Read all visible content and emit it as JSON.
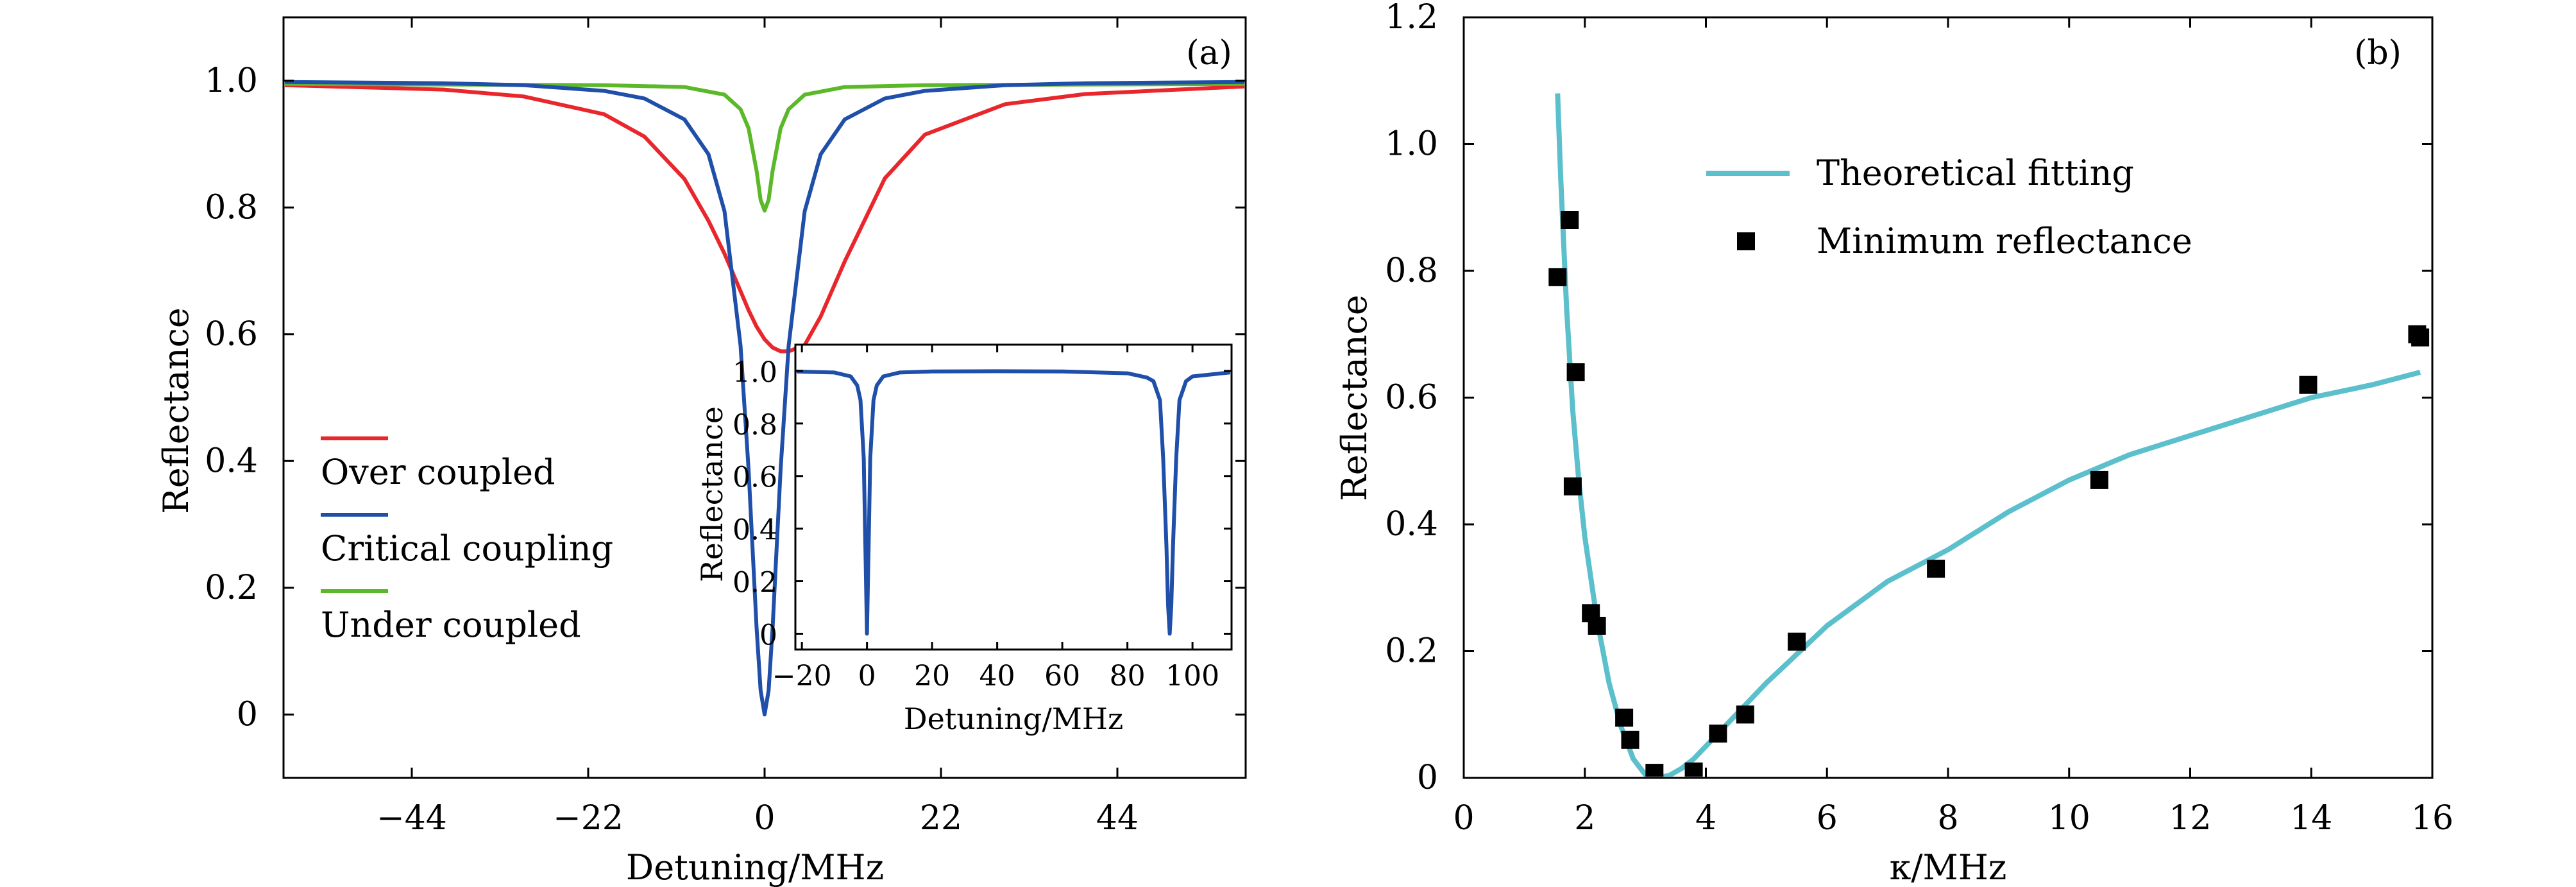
{
  "chart_data": [
    {
      "panel_label": "(a)",
      "type": "line",
      "xlabel": "Detuning/MHz",
      "ylabel": "Reflectance",
      "xlim": [
        -60,
        60
      ],
      "ylim": [
        -0.1,
        1.1
      ],
      "xticks": [
        -44,
        -22,
        0,
        22,
        44
      ],
      "xtick_labels": [
        "−44",
        "−22",
        "0",
        "22",
        "44"
      ],
      "yticks": [
        0,
        0.2,
        0.4,
        0.6,
        0.8,
        1.0
      ],
      "ytick_labels": [
        "0",
        "0.2",
        "0.4",
        "0.6",
        "0.8",
        "1.0"
      ],
      "grid": false,
      "legend_position": "left",
      "series": [
        {
          "name": "Over coupled",
          "color": "#e8262b",
          "x": [
            -60,
            -40,
            -30,
            -20,
            -15,
            -10,
            -7,
            -5,
            -3,
            -2,
            -1,
            0,
            1,
            2,
            3,
            5,
            7,
            10,
            15,
            20,
            30,
            40,
            60
          ],
          "y": [
            0.993,
            0.986,
            0.975,
            0.947,
            0.912,
            0.845,
            0.779,
            0.727,
            0.668,
            0.638,
            0.612,
            0.592,
            0.579,
            0.573,
            0.573,
            0.583,
            0.628,
            0.715,
            0.846,
            0.915,
            0.963,
            0.979,
            0.991
          ]
        },
        {
          "name": "Critical coupling",
          "color": "#1f4fa8",
          "x": [
            -60,
            -40,
            -30,
            -20,
            -15,
            -10,
            -7,
            -5,
            -3,
            -2,
            -1,
            -0.5,
            0,
            0.5,
            1,
            2,
            3,
            5,
            7,
            10,
            15,
            20,
            30,
            40,
            60
          ],
          "y": [
            0.998,
            0.996,
            0.993,
            0.984,
            0.972,
            0.939,
            0.884,
            0.794,
            0.582,
            0.387,
            0.137,
            0.038,
            0.0,
            0.038,
            0.137,
            0.387,
            0.582,
            0.794,
            0.884,
            0.939,
            0.972,
            0.984,
            0.993,
            0.996,
            0.998
          ]
        },
        {
          "name": "Under coupled",
          "color": "#5bb829",
          "x": [
            -60,
            -20,
            -10,
            -5,
            -3,
            -2,
            -1,
            -0.5,
            0,
            0.5,
            1,
            2,
            3,
            5,
            10,
            20,
            60
          ],
          "y": [
            0.995,
            0.993,
            0.99,
            0.978,
            0.955,
            0.925,
            0.858,
            0.812,
            0.795,
            0.812,
            0.858,
            0.925,
            0.955,
            0.978,
            0.99,
            0.993,
            0.995
          ]
        }
      ],
      "inset": {
        "type": "line",
        "xlabel": "Detuning/MHz",
        "ylabel": "Reflectance",
        "xlim": [
          -22,
          112
        ],
        "ylim": [
          -0.06,
          1.1
        ],
        "xticks": [
          -20,
          0,
          20,
          40,
          60,
          80,
          100
        ],
        "xtick_labels": [
          "−20",
          "0",
          "20",
          "40",
          "60",
          "80",
          "100"
        ],
        "yticks": [
          0,
          0.2,
          0.4,
          0.6,
          0.8,
          1.0
        ],
        "ytick_labels": [
          "0",
          "0.2",
          "0.4",
          "0.6",
          "0.8",
          "1.0"
        ],
        "color": "#1f4fa8",
        "dips_at": [
          0,
          93
        ],
        "x": [
          -22,
          -10,
          -5,
          -3,
          -2,
          -1,
          -0.5,
          0,
          0.5,
          1,
          2,
          3,
          5,
          10,
          20,
          40,
          60,
          80,
          86,
          88,
          90,
          91,
          92,
          92.5,
          93,
          93.5,
          94,
          95,
          96,
          98,
          100,
          112
        ],
        "y": [
          0.998,
          0.994,
          0.979,
          0.945,
          0.889,
          0.667,
          0.333,
          0.0,
          0.333,
          0.667,
          0.889,
          0.945,
          0.979,
          0.994,
          0.998,
          0.999,
          0.998,
          0.991,
          0.975,
          0.961,
          0.889,
          0.667,
          0.333,
          0.11,
          0.0,
          0.11,
          0.333,
          0.667,
          0.889,
          0.961,
          0.979,
          0.995
        ]
      }
    },
    {
      "panel_label": "(b)",
      "type": "scatter",
      "xlabel": "κ/MHz",
      "ylabel": "Reflectance",
      "xlim": [
        0,
        16
      ],
      "ylim": [
        0,
        1.2
      ],
      "xticks": [
        0,
        2,
        4,
        6,
        8,
        10,
        12,
        14,
        16
      ],
      "xtick_labels": [
        "0",
        "2",
        "4",
        "6",
        "8",
        "10",
        "12",
        "14",
        "16"
      ],
      "yticks": [
        0,
        0.2,
        0.4,
        0.6,
        0.8,
        1.0,
        1.2
      ],
      "ytick_labels": [
        "0",
        "0.2",
        "0.4",
        "0.6",
        "0.8",
        "1.0",
        "1.2"
      ],
      "grid": false,
      "legend_position": "top-center",
      "series": [
        {
          "name": "Theoretical fitting",
          "kind": "line",
          "color": "#5bbfcc",
          "x": [
            1.55,
            1.6,
            1.7,
            1.8,
            1.9,
            2.0,
            2.2,
            2.4,
            2.6,
            2.8,
            3.0,
            3.2,
            3.4,
            3.6,
            3.8,
            4.0,
            4.5,
            5.0,
            6.0,
            7.0,
            8.0,
            9.0,
            10.0,
            11.0,
            12.0,
            13.0,
            14.0,
            15.0,
            15.8
          ],
          "y": [
            1.08,
            0.95,
            0.74,
            0.58,
            0.47,
            0.38,
            0.25,
            0.15,
            0.08,
            0.03,
            0.005,
            0.0,
            0.004,
            0.015,
            0.03,
            0.05,
            0.1,
            0.15,
            0.24,
            0.31,
            0.36,
            0.42,
            0.47,
            0.51,
            0.54,
            0.57,
            0.6,
            0.62,
            0.64
          ]
        },
        {
          "name": "Minimum reflectance",
          "kind": "markers",
          "color": "#000000",
          "x": [
            1.55,
            1.75,
            1.85,
            1.8,
            2.1,
            2.2,
            2.65,
            2.75,
            3.15,
            3.8,
            4.2,
            4.65,
            5.5,
            7.8,
            10.5,
            13.95,
            15.75,
            15.8
          ],
          "y": [
            0.79,
            0.88,
            0.64,
            0.46,
            0.26,
            0.24,
            0.095,
            0.06,
            0.008,
            0.01,
            0.07,
            0.1,
            0.215,
            0.33,
            0.47,
            0.62,
            0.7,
            0.695
          ]
        }
      ]
    }
  ]
}
